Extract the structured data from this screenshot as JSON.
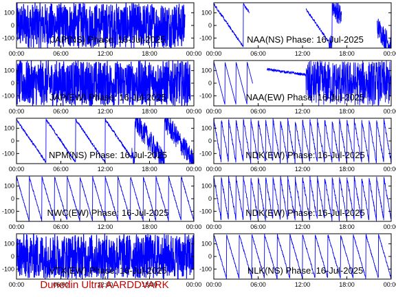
{
  "footer_text": "Dunedin Ultra AARDDVARK",
  "colors": {
    "trace": "#0000ff",
    "axes": "#000000",
    "footer": "#cc0000",
    "background": "#ffffff"
  },
  "chart_data": [
    {
      "type": "line",
      "label": "JAP(NS) Phase: 16-Jul-2025",
      "ylim": [
        -180,
        180
      ],
      "yticks": [
        -100,
        0,
        100
      ],
      "xticks": [
        "00:00",
        "06:00",
        "12:00",
        "18:00",
        "00:00"
      ],
      "pattern": "dense",
      "segments": [
        [
          0.0,
          0.15
        ],
        [
          0.15,
          0.3
        ],
        [
          0.3,
          0.95
        ]
      ]
    },
    {
      "type": "line",
      "label": "NAA(NS) Phase: 16-Jul-2025",
      "ylim": [
        -180,
        180
      ],
      "yticks": [
        -100,
        0,
        100
      ],
      "xticks": [
        "00:00",
        "06:00",
        "12:00",
        "18:00",
        "00:00"
      ],
      "pattern": "sawtooth-slow",
      "segments": [
        [
          0.0,
          0.2
        ],
        [
          0.52,
          0.72
        ],
        [
          0.92,
          1.0
        ]
      ]
    },
    {
      "type": "line",
      "label": "JAP(EW) Phase: 16-Jul-2025",
      "ylim": [
        -180,
        180
      ],
      "yticks": [
        -100,
        0,
        100
      ],
      "xticks": [
        "00:00",
        "06:00",
        "12:00",
        "18:00",
        "00:00"
      ],
      "pattern": "dense",
      "segments": [
        [
          0.0,
          0.98
        ]
      ]
    },
    {
      "type": "line",
      "label": "NAA(EW) Phase: 16-Jul-2025",
      "ylim": [
        -180,
        180
      ],
      "yticks": [
        -100,
        0,
        100
      ],
      "xticks": [
        "00:00",
        "06:00",
        "12:00",
        "18:00",
        "00:00"
      ],
      "pattern": "mixed",
      "segments": [
        [
          0.0,
          0.22
        ],
        [
          0.3,
          0.52
        ],
        [
          0.52,
          0.85
        ],
        [
          0.85,
          1.0
        ]
      ]
    },
    {
      "type": "line",
      "label": "NPM(NS) Phase: 16-Jul-2025",
      "ylim": [
        -180,
        180
      ],
      "yticks": [
        -100,
        0,
        100
      ],
      "xticks": [
        "00:00",
        "06:00",
        "12:00",
        "18:00",
        "00:00"
      ],
      "pattern": "sawtooth-slow",
      "segments": [
        [
          0.0,
          0.45
        ],
        [
          0.45,
          0.68
        ],
        [
          0.68,
          1.0
        ]
      ]
    },
    {
      "type": "line",
      "label": "NDK(EW) Phase: 16-Jul-2025",
      "ylim": [
        -180,
        180
      ],
      "yticks": [
        -100,
        0,
        100
      ],
      "xticks": [
        "00:00",
        "06:00",
        "12:00",
        "18:00",
        "00:00"
      ],
      "pattern": "sawtooth-fast",
      "segments": [
        [
          0.0,
          1.0
        ]
      ]
    },
    {
      "type": "line",
      "label": "NWC(EW) Phase: 16-Jul-2025",
      "ylim": [
        -180,
        180
      ],
      "yticks": [
        -100,
        0,
        100
      ],
      "xticks": [
        "00:00",
        "06:00",
        "12:00",
        "18:00",
        "00:00"
      ],
      "pattern": "sawtooth-medium",
      "segments": [
        [
          0.0,
          1.0
        ]
      ]
    },
    {
      "type": "line",
      "label": "NDK(EW) Phase: 16-Jul-2025",
      "ylim": [
        -180,
        180
      ],
      "yticks": [
        -100,
        0,
        100
      ],
      "xticks": [
        "00:00",
        "06:00",
        "12:00",
        "18:00",
        "00:00"
      ],
      "pattern": "sawtooth-fast",
      "segments": [
        [
          0.0,
          1.0
        ]
      ]
    },
    {
      "type": "line",
      "label": "VTX(EW) Phase: 16-Jul-2025",
      "ylim": [
        -180,
        180
      ],
      "yticks": [
        -100,
        0,
        100
      ],
      "xticks": [
        "00:00",
        "06:00",
        "12:00",
        "18:00",
        "00:00"
      ],
      "pattern": "dense",
      "segments": [
        [
          0.0,
          1.0
        ]
      ]
    },
    {
      "type": "line",
      "label": "NLK(NS) Phase: 16-Jul-2025",
      "ylim": [
        -180,
        180
      ],
      "yticks": [
        -100,
        0,
        100
      ],
      "xticks": [
        "00:00",
        "06:00",
        "12:00",
        "18:00",
        "00:00"
      ],
      "pattern": "sawtooth-medium",
      "segments": [
        [
          0.0,
          1.0
        ]
      ]
    }
  ]
}
